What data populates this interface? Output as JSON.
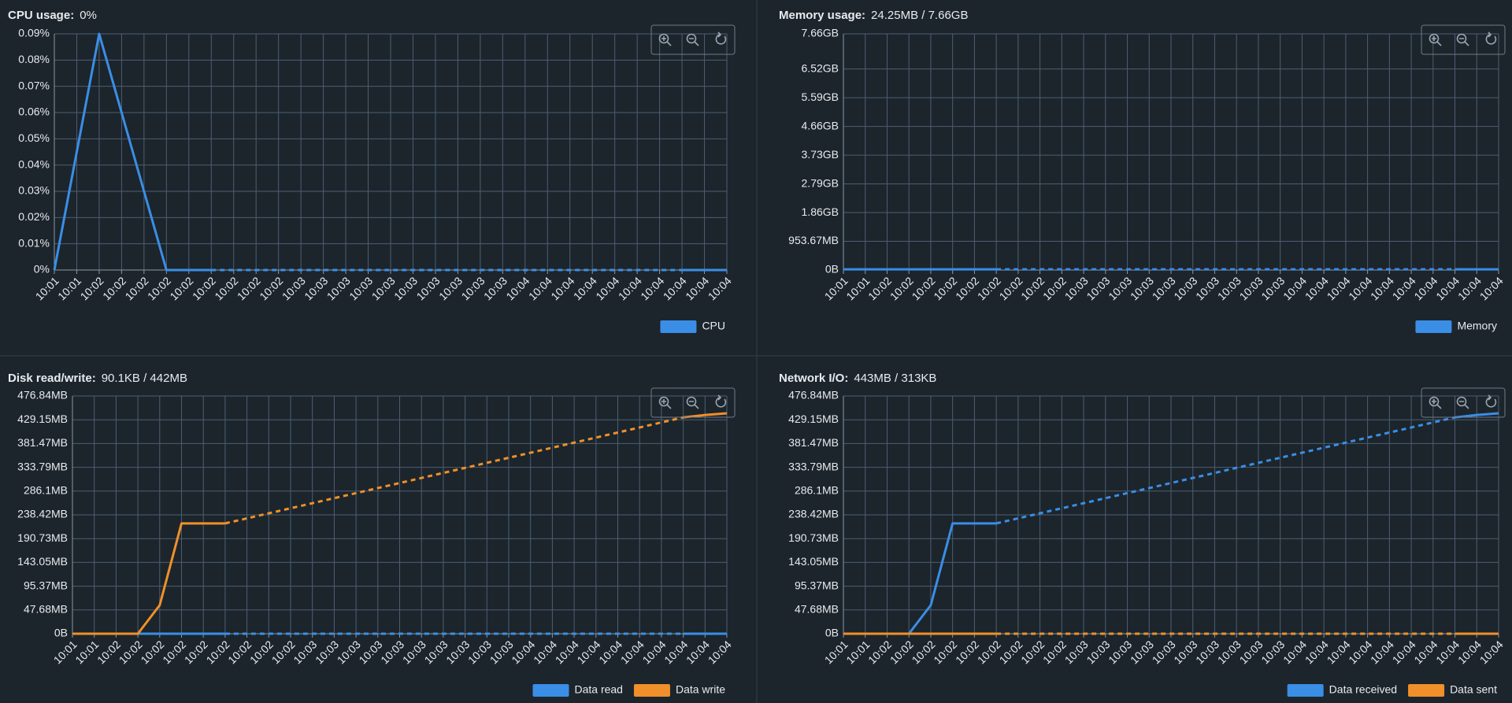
{
  "chart_data": [
    {
      "type": "line",
      "title": "CPU usage:",
      "subtitle": "0%",
      "categories": [
        "10:01",
        "10:01",
        "10:02",
        "10:02",
        "10:02",
        "10:02",
        "10:02",
        "10:02",
        "10:02",
        "10:02",
        "10:02",
        "10:03",
        "10:03",
        "10:03",
        "10:03",
        "10:03",
        "10:03",
        "10:03",
        "10:03",
        "10:03",
        "10:03",
        "10:04",
        "10:04",
        "10:04",
        "10:04",
        "10:04",
        "10:04",
        "10:04",
        "10:04",
        "10:04",
        "10:04"
      ],
      "series": [
        {
          "name": "CPU",
          "color": "#3a8ee6",
          "values": [
            0,
            0.045,
            0.09,
            0.06,
            0.03,
            0,
            0,
            0,
            null,
            null,
            null,
            null,
            null,
            null,
            null,
            null,
            null,
            null,
            null,
            null,
            null,
            null,
            null,
            null,
            null,
            null,
            null,
            null,
            0,
            0,
            0
          ]
        }
      ],
      "ylim": [
        0,
        0.09
      ],
      "yticks": [
        {
          "value": 0,
          "label": "0%"
        },
        {
          "value": 0.01,
          "label": "0.01%"
        },
        {
          "value": 0.02,
          "label": "0.02%"
        },
        {
          "value": 0.03,
          "label": "0.03%"
        },
        {
          "value": 0.04,
          "label": "0.04%"
        },
        {
          "value": 0.05,
          "label": "0.05%"
        },
        {
          "value": 0.06,
          "label": "0.06%"
        },
        {
          "value": 0.07,
          "label": "0.07%"
        },
        {
          "value": 0.08,
          "label": "0.08%"
        },
        {
          "value": 0.09,
          "label": "0.09%"
        }
      ],
      "grid": true,
      "legend": "bottom-right"
    },
    {
      "type": "line",
      "title": "Memory usage:",
      "subtitle": "24.25MB / 7.66GB",
      "categories": [
        "10:01",
        "10:01",
        "10:02",
        "10:02",
        "10:02",
        "10:02",
        "10:02",
        "10:02",
        "10:02",
        "10:02",
        "10:02",
        "10:03",
        "10:03",
        "10:03",
        "10:03",
        "10:03",
        "10:03",
        "10:03",
        "10:03",
        "10:03",
        "10:03",
        "10:04",
        "10:04",
        "10:04",
        "10:04",
        "10:04",
        "10:04",
        "10:04",
        "10:04",
        "10:04",
        "10:04"
      ],
      "series": [
        {
          "name": "Memory",
          "color": "#3a8ee6",
          "values": [
            25400000,
            25400000,
            25400000,
            25400000,
            25400000,
            25400000,
            25400000,
            25400000,
            null,
            null,
            null,
            null,
            null,
            null,
            null,
            null,
            null,
            null,
            null,
            null,
            null,
            null,
            null,
            null,
            null,
            null,
            null,
            null,
            25400000,
            25400000,
            25400000
          ]
        }
      ],
      "ylim": [
        0,
        8225000000
      ],
      "yticks": [
        {
          "value": 0,
          "label": "0B"
        },
        {
          "value": 1000000000,
          "label": "953.67MB"
        },
        {
          "value": 2000000000,
          "label": "1.86GB"
        },
        {
          "value": 3000000000,
          "label": "2.79GB"
        },
        {
          "value": 4000000000,
          "label": "3.73GB"
        },
        {
          "value": 5000000000,
          "label": "4.66GB"
        },
        {
          "value": 6000000000,
          "label": "5.59GB"
        },
        {
          "value": 7000000000,
          "label": "6.52GB"
        },
        {
          "value": 8225000000,
          "label": "7.66GB"
        }
      ],
      "grid": true,
      "legend": "bottom-right"
    },
    {
      "type": "line",
      "title": "Disk read/write:",
      "subtitle": "90.1KB / 442MB",
      "categories": [
        "10:01",
        "10:01",
        "10:02",
        "10:02",
        "10:02",
        "10:02",
        "10:02",
        "10:02",
        "10:02",
        "10:02",
        "10:02",
        "10:03",
        "10:03",
        "10:03",
        "10:03",
        "10:03",
        "10:03",
        "10:03",
        "10:03",
        "10:03",
        "10:03",
        "10:04",
        "10:04",
        "10:04",
        "10:04",
        "10:04",
        "10:04",
        "10:04",
        "10:04",
        "10:04",
        "10:04"
      ],
      "series": [
        {
          "name": "Data read",
          "color": "#3a8ee6",
          "values": [
            0,
            0,
            0,
            0,
            0,
            0,
            0,
            0,
            null,
            null,
            null,
            null,
            null,
            null,
            null,
            null,
            null,
            null,
            null,
            null,
            null,
            null,
            null,
            null,
            null,
            null,
            null,
            null,
            0,
            0,
            0
          ]
        },
        {
          "name": "Data write",
          "color": "#f0902a",
          "values": [
            0,
            0,
            0,
            0,
            60000000,
            232000000,
            232000000,
            232000000,
            null,
            null,
            null,
            null,
            null,
            null,
            null,
            null,
            null,
            null,
            null,
            null,
            null,
            null,
            null,
            null,
            null,
            null,
            null,
            null,
            455000000,
            460000000,
            463500000
          ]
        }
      ],
      "ylim": [
        0,
        500000000
      ],
      "yticks": [
        {
          "value": 0,
          "label": "0B"
        },
        {
          "value": 50000000,
          "label": "47.68MB"
        },
        {
          "value": 100000000,
          "label": "95.37MB"
        },
        {
          "value": 150000000,
          "label": "143.05MB"
        },
        {
          "value": 200000000,
          "label": "190.73MB"
        },
        {
          "value": 250000000,
          "label": "238.42MB"
        },
        {
          "value": 300000000,
          "label": "286.1MB"
        },
        {
          "value": 350000000,
          "label": "333.79MB"
        },
        {
          "value": 400000000,
          "label": "381.47MB"
        },
        {
          "value": 450000000,
          "label": "429.15MB"
        },
        {
          "value": 500000000,
          "label": "476.84MB"
        }
      ],
      "grid": true,
      "legend": "bottom-right"
    },
    {
      "type": "line",
      "title": "Network I/O:",
      "subtitle": "443MB / 313KB",
      "categories": [
        "10:01",
        "10:01",
        "10:02",
        "10:02",
        "10:02",
        "10:02",
        "10:02",
        "10:02",
        "10:02",
        "10:02",
        "10:02",
        "10:03",
        "10:03",
        "10:03",
        "10:03",
        "10:03",
        "10:03",
        "10:03",
        "10:03",
        "10:03",
        "10:03",
        "10:04",
        "10:04",
        "10:04",
        "10:04",
        "10:04",
        "10:04",
        "10:04",
        "10:04",
        "10:04",
        "10:04"
      ],
      "series": [
        {
          "name": "Data received",
          "color": "#3a8ee6",
          "values": [
            0,
            0,
            0,
            0,
            60000000,
            232000000,
            232000000,
            232000000,
            null,
            null,
            null,
            null,
            null,
            null,
            null,
            null,
            null,
            null,
            null,
            null,
            null,
            null,
            null,
            null,
            null,
            null,
            null,
            null,
            455000000,
            460000000,
            463500000
          ]
        },
        {
          "name": "Data sent",
          "color": "#f0902a",
          "values": [
            0,
            0,
            0,
            0,
            0,
            0,
            0,
            0,
            null,
            null,
            null,
            null,
            null,
            null,
            null,
            null,
            null,
            null,
            null,
            null,
            null,
            null,
            null,
            null,
            null,
            null,
            null,
            null,
            0,
            0,
            0
          ]
        }
      ],
      "ylim": [
        0,
        500000000
      ],
      "yticks": [
        {
          "value": 0,
          "label": "0B"
        },
        {
          "value": 50000000,
          "label": "47.68MB"
        },
        {
          "value": 100000000,
          "label": "95.37MB"
        },
        {
          "value": 150000000,
          "label": "143.05MB"
        },
        {
          "value": 200000000,
          "label": "190.73MB"
        },
        {
          "value": 250000000,
          "label": "238.42MB"
        },
        {
          "value": 300000000,
          "label": "286.1MB"
        },
        {
          "value": 350000000,
          "label": "333.79MB"
        },
        {
          "value": 400000000,
          "label": "381.47MB"
        },
        {
          "value": 450000000,
          "label": "429.15MB"
        },
        {
          "value": 500000000,
          "label": "476.84MB"
        }
      ],
      "grid": true,
      "legend": "bottom-right"
    }
  ]
}
